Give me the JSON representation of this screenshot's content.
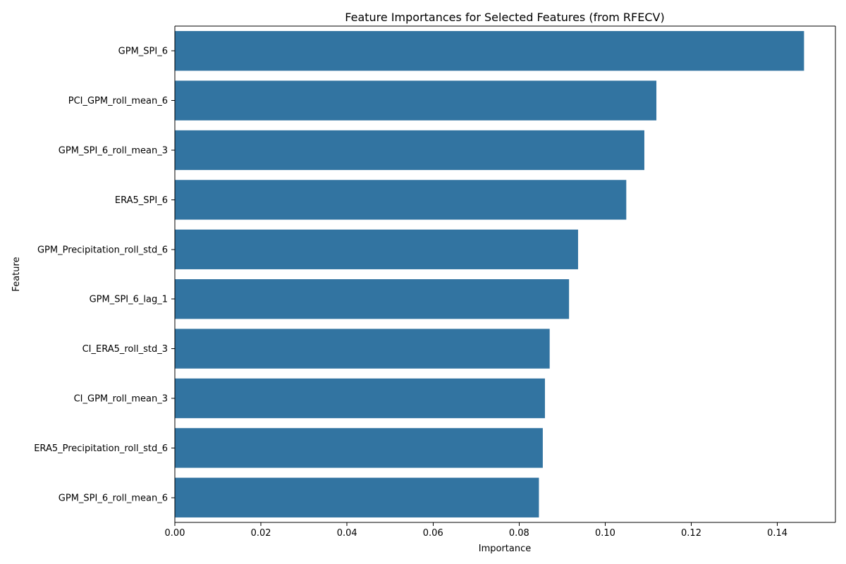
{
  "chart_data": {
    "type": "bar",
    "orientation": "horizontal",
    "title": "Feature Importances for Selected Features (from RFECV)",
    "xlabel": "Importance",
    "ylabel": "Feature",
    "categories": [
      "GPM_SPI_6",
      "PCI_GPM_roll_mean_6",
      "GPM_SPI_6_roll_mean_3",
      "ERA5_SPI_6",
      "GPM_Precipitation_roll_std_6",
      "GPM_SPI_6_lag_1",
      "CI_ERA5_roll_std_3",
      "CI_GPM_roll_mean_3",
      "ERA5_Precipitation_roll_std_6",
      "GPM_SPI_6_roll_mean_6"
    ],
    "values": [
      0.1462,
      0.1119,
      0.1091,
      0.1049,
      0.0937,
      0.0916,
      0.0871,
      0.086,
      0.0855,
      0.0846
    ],
    "xlim": [
      0,
      0.1535
    ],
    "xticks": [
      0.0,
      0.02,
      0.04,
      0.06,
      0.08,
      0.1,
      0.12,
      0.14
    ],
    "xtick_labels": [
      "0.00",
      "0.02",
      "0.04",
      "0.06",
      "0.08",
      "0.10",
      "0.12",
      "0.14"
    ],
    "bar_color": "#3274a1",
    "grid": false,
    "legend": "none"
  }
}
